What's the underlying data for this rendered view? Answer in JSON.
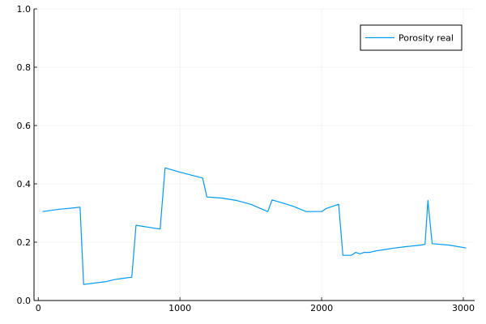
{
  "chart_data": {
    "type": "line",
    "title": "",
    "xlabel": "",
    "ylabel": "",
    "xlim": [
      -30,
      3080
    ],
    "ylim": [
      0,
      1
    ],
    "xticks": [
      0,
      1000,
      2000,
      3000
    ],
    "yticks": [
      0.0,
      0.2,
      0.4,
      0.6,
      0.8,
      1.0
    ],
    "xtick_labels": [
      "0",
      "1000",
      "2000",
      "3000"
    ],
    "ytick_labels": [
      "0.0",
      "0.2",
      "0.4",
      "0.6",
      "0.8",
      "1.0"
    ],
    "grid": true,
    "legend_position": "top-right",
    "series": [
      {
        "name": "Porosity real",
        "color": "#009AF9",
        "x": [
          30,
          150,
          260,
          295,
          320,
          400,
          480,
          540,
          600,
          660,
          690,
          860,
          895,
          1000,
          1160,
          1190,
          1300,
          1400,
          1500,
          1620,
          1650,
          1700,
          1800,
          1890,
          2000,
          2030,
          2120,
          2150,
          2210,
          2240,
          2270,
          2300,
          2340,
          2380,
          2450,
          2500,
          2600,
          2700,
          2730,
          2750,
          2780,
          2900,
          3020
        ],
        "y": [
          0.305,
          0.313,
          0.318,
          0.32,
          0.055,
          0.06,
          0.065,
          0.072,
          0.076,
          0.08,
          0.258,
          0.245,
          0.455,
          0.44,
          0.42,
          0.355,
          0.351,
          0.343,
          0.33,
          0.305,
          0.345,
          0.338,
          0.323,
          0.305,
          0.305,
          0.315,
          0.33,
          0.155,
          0.155,
          0.165,
          0.16,
          0.165,
          0.165,
          0.17,
          0.175,
          0.179,
          0.185,
          0.19,
          0.193,
          0.343,
          0.195,
          0.19,
          0.18
        ]
      }
    ]
  }
}
